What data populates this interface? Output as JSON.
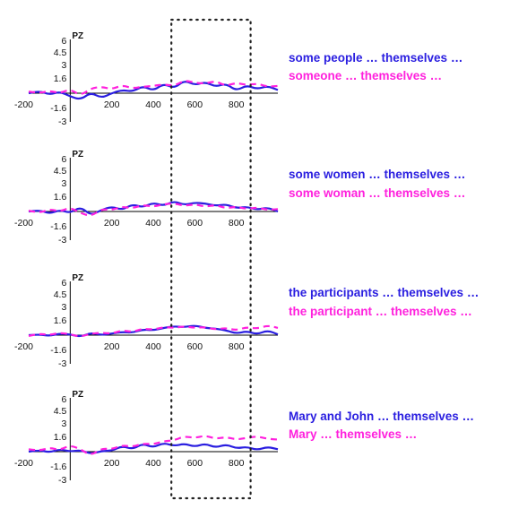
{
  "colors": {
    "series_a": "#2a1ee0",
    "series_b": "#ff20dd",
    "axis": "#000000",
    "window": "#222222"
  },
  "time_window": {
    "start": 500,
    "end": 860
  },
  "chart_data": [
    {
      "type": "line",
      "channel": "PZ",
      "xlim": [
        -200,
        1000
      ],
      "ylim": [
        -3,
        6
      ],
      "xticks": [
        "-200",
        "200",
        "400",
        "600",
        "800"
      ],
      "yticks": [
        "6",
        "4.5",
        "3",
        "1.6",
        "-1.6",
        "-3"
      ],
      "legend": [
        "some people … themselves …",
        "someone … themselves …"
      ],
      "series": [
        {
          "x": [
            -200,
            -150,
            -100,
            -50,
            0,
            50,
            100,
            150,
            200,
            250,
            300,
            350,
            400,
            450,
            500,
            550,
            600,
            650,
            700,
            750,
            800,
            850,
            900,
            950,
            1000
          ],
          "values": [
            0,
            0.3,
            -0.2,
            0.2,
            -0.4,
            -0.8,
            0.1,
            -0.6,
            0,
            0.4,
            0.2,
            0.9,
            0.3,
            1.2,
            0.6,
            1.6,
            1,
            1.4,
            0.8,
            1.2,
            0.3,
            1,
            0.5,
            0.9,
            0.4
          ]
        },
        {
          "x": [
            -200,
            -150,
            -100,
            -50,
            0,
            50,
            100,
            150,
            200,
            250,
            300,
            350,
            400,
            450,
            500,
            550,
            600,
            650,
            700,
            750,
            800,
            850,
            900,
            950,
            1000
          ],
          "values": [
            0.2,
            0,
            0.3,
            0,
            0.5,
            -0.3,
            0.6,
            0.8,
            0.5,
            1,
            0.6,
            0.8,
            0.9,
            1.1,
            0.9,
            1.6,
            1.3,
            1.2,
            1.5,
            0.9,
            1.3,
            1,
            1.2,
            0.8,
            0.9
          ]
        }
      ]
    },
    {
      "type": "line",
      "channel": "PZ",
      "xlim": [
        -200,
        1000
      ],
      "ylim": [
        -3,
        6
      ],
      "xticks": [
        "-200",
        "200",
        "400",
        "600",
        "800"
      ],
      "yticks": [
        "6",
        "4.5",
        "3",
        "1.6",
        "-1.6",
        "-3"
      ],
      "legend": [
        "some women … themselves …",
        "some woman … themselves …"
      ],
      "series": [
        {
          "x": [
            -200,
            -150,
            -100,
            -50,
            0,
            50,
            100,
            150,
            200,
            250,
            300,
            350,
            400,
            450,
            500,
            550,
            600,
            650,
            700,
            750,
            800,
            850,
            900,
            950,
            1000
          ],
          "values": [
            0,
            0.2,
            -0.3,
            0.2,
            -0.2,
            0.6,
            -0.5,
            0.2,
            0.6,
            0.2,
            0.9,
            0.5,
            1.1,
            0.7,
            1.3,
            0.8,
            1.1,
            1,
            0.7,
            0.9,
            0.4,
            0.6,
            0.2,
            0.5,
            0
          ]
        },
        {
          "x": [
            -200,
            -150,
            -100,
            -50,
            0,
            50,
            100,
            150,
            200,
            250,
            300,
            350,
            400,
            450,
            500,
            550,
            600,
            650,
            700,
            750,
            800,
            850,
            900,
            950,
            1000
          ],
          "values": [
            0.1,
            -0.2,
            0.3,
            0,
            0.5,
            -0.2,
            -0.6,
            0.3,
            0.2,
            0.6,
            0.4,
            0.8,
            0.6,
            0.9,
            1,
            0.7,
            0.9,
            0.6,
            0.8,
            0.4,
            0.6,
            0.3,
            0.5,
            0.2,
            0.3
          ]
        }
      ]
    },
    {
      "type": "line",
      "channel": "PZ",
      "xlim": [
        -200,
        1000
      ],
      "ylim": [
        -3,
        6
      ],
      "xticks": [
        "-200",
        "200",
        "400",
        "600",
        "800"
      ],
      "yticks": [
        "6",
        "4.5",
        "3",
        "1.6",
        "-1.6",
        "-3"
      ],
      "legend": [
        "the participants … themselves …",
        "the participant … themselves …"
      ],
      "series": [
        {
          "x": [
            -200,
            -150,
            -100,
            -50,
            0,
            50,
            100,
            150,
            200,
            250,
            300,
            350,
            400,
            450,
            500,
            550,
            600,
            650,
            700,
            750,
            800,
            850,
            900,
            950,
            1000
          ],
          "values": [
            0,
            0.1,
            -0.1,
            0.2,
            0.1,
            -0.2,
            0.3,
            0,
            0.2,
            0.4,
            0.3,
            0.7,
            0.6,
            0.9,
            1.1,
            1,
            1.2,
            0.9,
            0.8,
            0.6,
            0.2,
            0.5,
            0.1,
            0.6,
            0.1
          ]
        },
        {
          "x": [
            -200,
            -150,
            -100,
            -50,
            0,
            50,
            100,
            150,
            200,
            250,
            300,
            350,
            400,
            450,
            500,
            550,
            600,
            650,
            700,
            750,
            800,
            850,
            900,
            950,
            1000
          ],
          "values": [
            -0.1,
            0.2,
            0,
            0.3,
            0.1,
            -0.2,
            0.2,
            0.3,
            0.2,
            0.6,
            0.4,
            0.8,
            0.7,
            1,
            0.9,
            1.1,
            0.9,
            1,
            0.7,
            0.9,
            0.6,
            1,
            0.8,
            1.2,
            0.9
          ]
        }
      ]
    },
    {
      "type": "line",
      "channel": "PZ",
      "xlim": [
        -200,
        1000
      ],
      "ylim": [
        -3,
        6
      ],
      "xticks": [
        "-200",
        "200",
        "400",
        "600",
        "800"
      ],
      "yticks": [
        "6",
        "4.5",
        "3",
        "1.6",
        "-1.6",
        "-3"
      ],
      "legend": [
        "Mary and John … themselves …",
        "Mary … themselves …"
      ],
      "series": [
        {
          "x": [
            -200,
            -150,
            -100,
            -50,
            0,
            50,
            100,
            150,
            200,
            250,
            300,
            350,
            400,
            450,
            500,
            550,
            600,
            650,
            700,
            750,
            800,
            850,
            900,
            950,
            1000
          ],
          "values": [
            0,
            0.2,
            -0.1,
            0.3,
            0,
            0.2,
            -0.3,
            0.1,
            0.1,
            0.7,
            0.3,
            1,
            0.5,
            1.1,
            0.7,
            1,
            0.6,
            1,
            0.5,
            0.9,
            0.4,
            0.6,
            0.2,
            0.6,
            0.3
          ]
        },
        {
          "x": [
            -200,
            -150,
            -100,
            -50,
            0,
            50,
            100,
            150,
            200,
            250,
            300,
            350,
            400,
            450,
            500,
            550,
            600,
            650,
            700,
            750,
            800,
            850,
            900,
            950,
            1000
          ],
          "values": [
            0.3,
            0.1,
            0.5,
            0.2,
            0.8,
            0.3,
            -0.5,
            0.4,
            0.3,
            0.8,
            0.6,
            1,
            0.9,
            1.3,
            1.4,
            1.9,
            1.7,
            2,
            1.6,
            1.8,
            1.5,
            1.7,
            1.9,
            1.6,
            1.5
          ]
        }
      ]
    }
  ]
}
